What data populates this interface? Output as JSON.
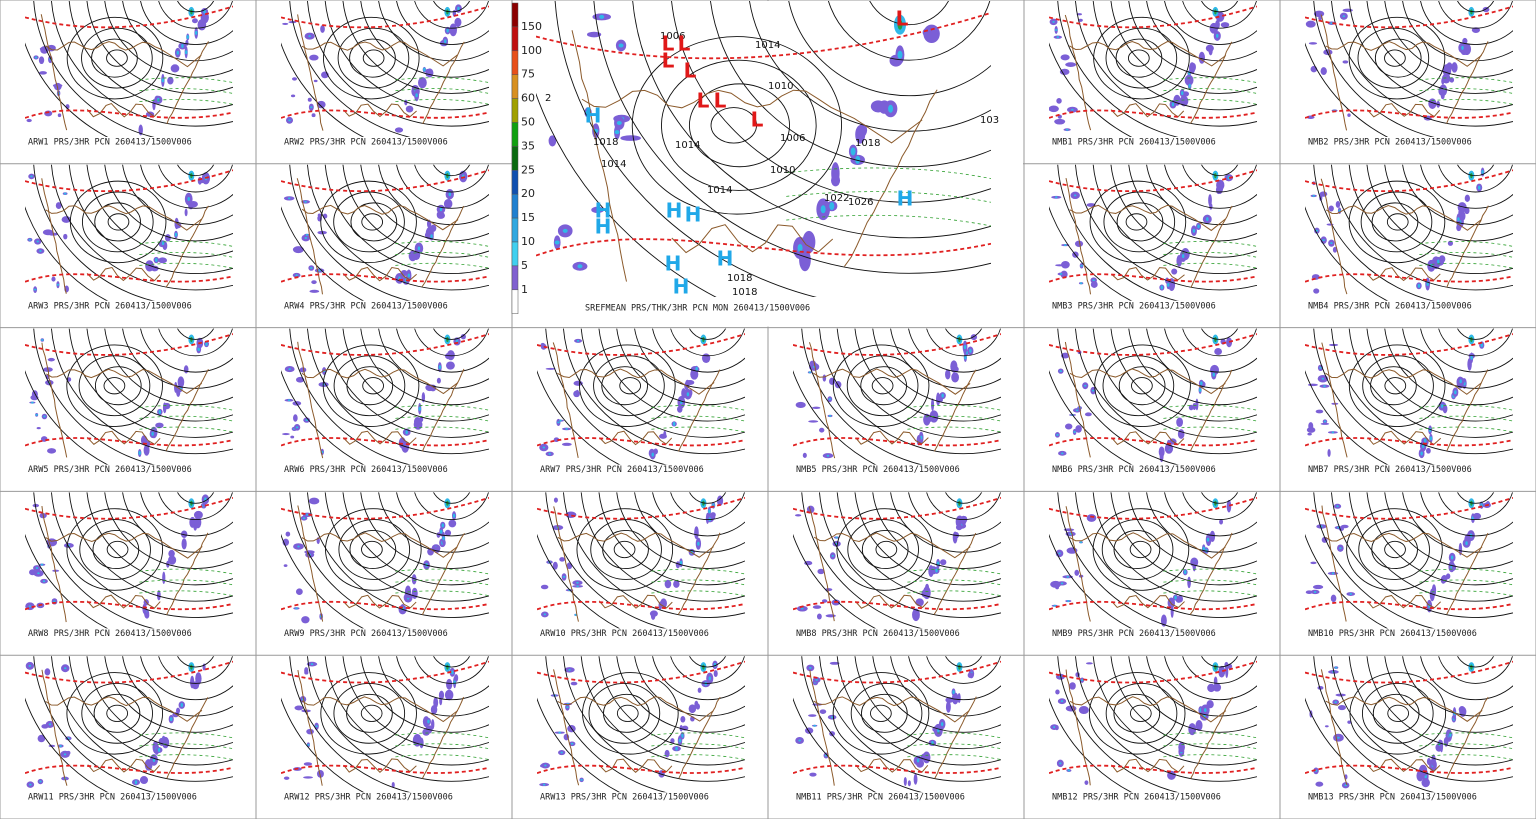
{
  "panels": [
    {
      "caption": "ARW1 PRS/3HR PCN 260413/1500V006"
    },
    {
      "caption": "ARW2 PRS/3HR PCN 260413/1500V006"
    },
    {
      "caption": "NMB1 PRS/3HR PCN 260413/1500V006"
    },
    {
      "caption": "NMB2 PRS/3HR PCN 260413/1500V006"
    },
    {
      "caption": "ARW3 PRS/3HR PCN 260413/1500V006"
    },
    {
      "caption": "ARW4 PRS/3HR PCN 260413/1500V006"
    },
    {
      "caption": "NMB3 PRS/3HR PCN 260413/1500V006"
    },
    {
      "caption": "NMB4 PRS/3HR PCN 260413/1500V006"
    },
    {
      "caption": "ARW5 PRS/3HR PCN 260413/1500V006"
    },
    {
      "caption": "ARW6 PRS/3HR PCN 260413/1500V006"
    },
    {
      "caption": "ARW7 PRS/3HR PCN 260413/1500V006"
    },
    {
      "caption": "NMB5 PRS/3HR PCN 260413/1500V006"
    },
    {
      "caption": "NMB6 PRS/3HR PCN 260413/1500V006"
    },
    {
      "caption": "NMB7 PRS/3HR PCN 260413/1500V006"
    },
    {
      "caption": "ARW8 PRS/3HR PCN 260413/1500V006"
    },
    {
      "caption": "ARW9 PRS/3HR PCN 260413/1500V006"
    },
    {
      "caption": "ARW10 PRS/3HR PCN 260413/1500V006"
    },
    {
      "caption": "NMB8 PRS/3HR PCN 260413/1500V006"
    },
    {
      "caption": "NMB9 PRS/3HR PCN 260413/1500V006"
    },
    {
      "caption": "NMB10 PRS/3HR PCN 260413/1500V006"
    },
    {
      "caption": "ARW11 PRS/3HR PCN 260413/1500V006"
    },
    {
      "caption": "ARW12 PRS/3HR PCN 260413/1500V006"
    },
    {
      "caption": "ARW13 PRS/3HR PCN 260413/1500V006"
    },
    {
      "caption": "NMB11 PRS/3HR PCN 260413/1500V006"
    },
    {
      "caption": "NMB12 PRS/3HR PCN 260413/1500V006"
    },
    {
      "caption": "NMB13 PRS/3HR PCN 260413/1500V006"
    }
  ],
  "mean_panel": {
    "caption": "SREFMEAN PRS/THK/3HR PCN MON 260413/1500V006",
    "colorbar": {
      "labels": [
        150,
        100,
        75,
        60,
        50,
        35,
        25,
        20,
        15,
        10,
        5,
        1
      ],
      "colors": [
        "#8b0000",
        "#c01010",
        "#e8501a",
        "#d89020",
        "#a0a000",
        "#10a010",
        "#0a6a10",
        "#1050b0",
        "#2080d0",
        "#30a8e0",
        "#40d0f0",
        "#8060d0",
        "#ffffff"
      ]
    },
    "pressure_centers": [
      "H",
      "H",
      "H",
      "H",
      "H",
      "H",
      "H",
      "H",
      "H",
      "L",
      "L",
      "L",
      "L",
      "L",
      "L",
      "L",
      "L"
    ],
    "isobar_labels": [
      "1006",
      "1014",
      "1010",
      "1018",
      "1014",
      "1014",
      "1006",
      "1010",
      "1014",
      "1022",
      "1026",
      "1018",
      "1018",
      "1018",
      "103",
      "2"
    ]
  }
}
